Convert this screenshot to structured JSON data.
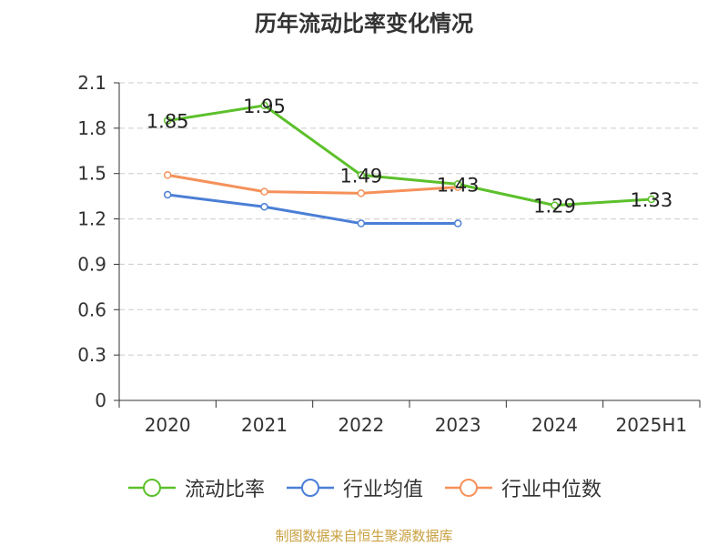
{
  "page_title": "历年流动比率变化情况",
  "source_text": "制图数据来自恒生聚源数据库",
  "colors": {
    "axis": "#333333",
    "grid": "#cccccc",
    "source": "#c8a040",
    "title": "#333333"
  },
  "chart_data": {
    "type": "line",
    "title": "历年流动比率变化情况",
    "xlabel": "",
    "ylabel": "",
    "categories": [
      "2020",
      "2021",
      "2022",
      "2023",
      "2024",
      "2025H1"
    ],
    "ylim": [
      0,
      2.1
    ],
    "yticks": [
      "0",
      "0.3",
      "0.6",
      "0.9",
      "1.2",
      "1.5",
      "1.8",
      "2.1"
    ],
    "grid": true,
    "legend_position": "bottom",
    "series": [
      {
        "name": "流动比率",
        "color": "#5cc02b",
        "values": [
          1.85,
          1.95,
          1.49,
          1.43,
          1.29,
          1.33
        ],
        "labels": [
          "1.85",
          "1.95",
          "1.49",
          "1.43",
          "1.29",
          "1.33"
        ]
      },
      {
        "name": "行业均值",
        "color": "#4b7fd6",
        "values": [
          1.36,
          1.28,
          1.17,
          1.17,
          null,
          null
        ],
        "labels": []
      },
      {
        "name": "行业中位数",
        "color": "#f5915a",
        "values": [
          1.49,
          1.38,
          1.37,
          1.41,
          null,
          null
        ],
        "labels": []
      }
    ]
  }
}
